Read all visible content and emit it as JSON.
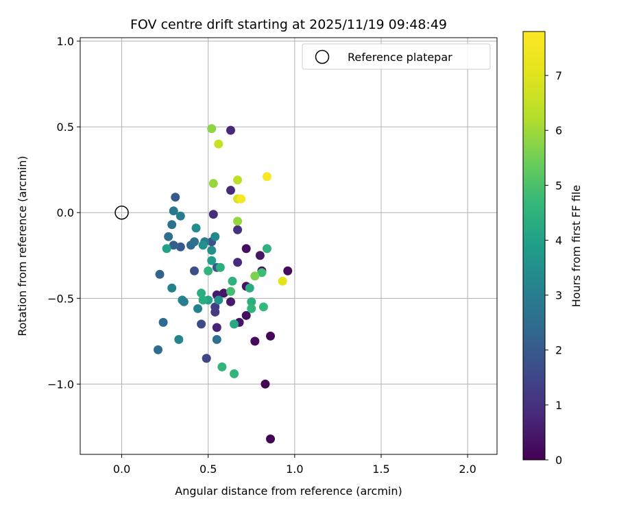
{
  "chart_data": {
    "type": "scatter",
    "title": "FOV centre drift starting at 2025/11/19 09:48:49",
    "xlabel": "Angular distance from reference (arcmin)",
    "ylabel": "Rotation from reference (arcmin)",
    "xlim": [
      -0.24,
      2.17
    ],
    "ylim": [
      -1.41,
      1.02
    ],
    "x_ticks": [
      0.0,
      0.5,
      1.0,
      1.5,
      2.0
    ],
    "x_tick_labels": [
      "0.0",
      "0.5",
      "1.0",
      "1.5",
      "2.0"
    ],
    "y_ticks": [
      1.0,
      0.5,
      0.0,
      -0.5,
      -1.0
    ],
    "y_tick_labels": [
      "1.0",
      "0.5",
      "0.0",
      "−0.5",
      "−1.0"
    ],
    "grid": true,
    "legend": {
      "position": "top-right",
      "entries": [
        {
          "label": "Reference platepar",
          "marker": "open-circle"
        }
      ]
    },
    "reference_point": {
      "x": 0.0,
      "y": 0.0
    },
    "colorbar": {
      "label": "Hours from first FF file",
      "colormap": "viridis",
      "range": [
        0,
        7.8
      ],
      "ticks": [
        0,
        1,
        2,
        3,
        4,
        5,
        6,
        7
      ],
      "tick_labels": [
        "0",
        "1",
        "2",
        "3",
        "4",
        "5",
        "6",
        "7"
      ]
    },
    "points": [
      {
        "x": 0.86,
        "y": -1.32,
        "t": 0.05
      },
      {
        "x": 0.83,
        "y": -1.0,
        "t": 0.05
      },
      {
        "x": 0.86,
        "y": -0.72,
        "t": 0.1
      },
      {
        "x": 0.77,
        "y": -0.75,
        "t": 0.2
      },
      {
        "x": 0.68,
        "y": -0.64,
        "t": 0.4
      },
      {
        "x": 0.72,
        "y": -0.6,
        "t": 0.3
      },
      {
        "x": 0.96,
        "y": -0.34,
        "t": 0.2
      },
      {
        "x": 0.81,
        "y": -0.34,
        "t": 0.2
      },
      {
        "x": 0.8,
        "y": -0.25,
        "t": 0.4
      },
      {
        "x": 0.72,
        "y": -0.21,
        "t": 0.25
      },
      {
        "x": 0.72,
        "y": -0.43,
        "t": 0.35
      },
      {
        "x": 0.63,
        "y": -0.52,
        "t": 0.5
      },
      {
        "x": 0.59,
        "y": -0.47,
        "t": 0.4
      },
      {
        "x": 0.55,
        "y": -0.48,
        "t": 0.5
      },
      {
        "x": 0.55,
        "y": -0.67,
        "t": 0.7
      },
      {
        "x": 0.67,
        "y": -0.29,
        "t": 0.9
      },
      {
        "x": 0.67,
        "y": -0.1,
        "t": 1.0
      },
      {
        "x": 0.63,
        "y": 0.48,
        "t": 0.8
      },
      {
        "x": 0.63,
        "y": 0.13,
        "t": 0.9
      },
      {
        "x": 0.53,
        "y": -0.01,
        "t": 0.9
      },
      {
        "x": 0.54,
        "y": -0.58,
        "t": 1.2
      },
      {
        "x": 0.54,
        "y": -0.55,
        "t": 1.3
      },
      {
        "x": 0.49,
        "y": -0.85,
        "t": 1.5
      },
      {
        "x": 0.46,
        "y": -0.65,
        "t": 1.6
      },
      {
        "x": 0.42,
        "y": -0.34,
        "t": 1.7
      },
      {
        "x": 0.55,
        "y": -0.32,
        "t": 1.9
      },
      {
        "x": 0.52,
        "y": -0.17,
        "t": 1.8
      },
      {
        "x": 0.31,
        "y": 0.09,
        "t": 1.9
      },
      {
        "x": 0.34,
        "y": -0.2,
        "t": 2.0
      },
      {
        "x": 0.3,
        "y": -0.19,
        "t": 2.1
      },
      {
        "x": 0.22,
        "y": -0.36,
        "t": 2.2
      },
      {
        "x": 0.24,
        "y": -0.64,
        "t": 2.4
      },
      {
        "x": 0.21,
        "y": -0.8,
        "t": 2.5
      },
      {
        "x": 0.27,
        "y": -0.14,
        "t": 2.6
      },
      {
        "x": 0.29,
        "y": -0.07,
        "t": 2.6
      },
      {
        "x": 0.3,
        "y": 0.01,
        "t": 2.8
      },
      {
        "x": 0.34,
        "y": -0.02,
        "t": 2.9
      },
      {
        "x": 0.29,
        "y": -0.44,
        "t": 3.1
      },
      {
        "x": 0.35,
        "y": -0.51,
        "t": 3.2
      },
      {
        "x": 0.36,
        "y": -0.52,
        "t": 3.0
      },
      {
        "x": 0.33,
        "y": -0.74,
        "t": 3.2
      },
      {
        "x": 0.4,
        "y": -0.19,
        "t": 2.4
      },
      {
        "x": 0.42,
        "y": -0.17,
        "t": 2.6
      },
      {
        "x": 0.48,
        "y": -0.17,
        "t": 2.9
      },
      {
        "x": 0.43,
        "y": -0.09,
        "t": 3.4
      },
      {
        "x": 0.44,
        "y": -0.56,
        "t": 3.1
      },
      {
        "x": 0.47,
        "y": -0.19,
        "t": 3.5
      },
      {
        "x": 0.54,
        "y": -0.14,
        "t": 3.3
      },
      {
        "x": 0.52,
        "y": -0.22,
        "t": 3.5
      },
      {
        "x": 0.52,
        "y": -0.28,
        "t": 3.9
      },
      {
        "x": 0.55,
        "y": -0.74,
        "t": 2.6
      },
      {
        "x": 0.56,
        "y": -0.51,
        "t": 3.6
      },
      {
        "x": 0.5,
        "y": -0.51,
        "t": 4.1
      },
      {
        "x": 0.47,
        "y": -0.51,
        "t": 4.3
      },
      {
        "x": 0.46,
        "y": -0.47,
        "t": 4.4
      },
      {
        "x": 0.26,
        "y": -0.21,
        "t": 4.0
      },
      {
        "x": 0.5,
        "y": -0.34,
        "t": 4.6
      },
      {
        "x": 0.57,
        "y": -0.32,
        "t": 4.4
      },
      {
        "x": 0.58,
        "y": -0.9,
        "t": 4.6
      },
      {
        "x": 0.65,
        "y": -0.94,
        "t": 4.6
      },
      {
        "x": 0.65,
        "y": -0.65,
        "t": 4.2
      },
      {
        "x": 0.63,
        "y": -0.46,
        "t": 4.9
      },
      {
        "x": 0.64,
        "y": -0.4,
        "t": 4.5
      },
      {
        "x": 0.74,
        "y": -0.44,
        "t": 4.3
      },
      {
        "x": 0.75,
        "y": -0.52,
        "t": 4.4
      },
      {
        "x": 0.75,
        "y": -0.56,
        "t": 4.6
      },
      {
        "x": 0.82,
        "y": -0.55,
        "t": 4.7
      },
      {
        "x": 0.84,
        "y": -0.21,
        "t": 4.5
      },
      {
        "x": 0.81,
        "y": -0.35,
        "t": 4.8
      },
      {
        "x": 0.77,
        "y": -0.37,
        "t": 5.6
      },
      {
        "x": 0.67,
        "y": -0.05,
        "t": 5.9
      },
      {
        "x": 0.52,
        "y": 0.49,
        "t": 5.8
      },
      {
        "x": 0.53,
        "y": 0.17,
        "t": 5.9
      },
      {
        "x": 0.67,
        "y": 0.19,
        "t": 6.4
      },
      {
        "x": 0.56,
        "y": 0.4,
        "t": 6.6
      },
      {
        "x": 0.67,
        "y": 0.08,
        "t": 6.8
      },
      {
        "x": 0.69,
        "y": 0.08,
        "t": 7.6
      },
      {
        "x": 0.84,
        "y": 0.21,
        "t": 7.7
      },
      {
        "x": 0.93,
        "y": -0.4,
        "t": 7.1
      }
    ]
  }
}
